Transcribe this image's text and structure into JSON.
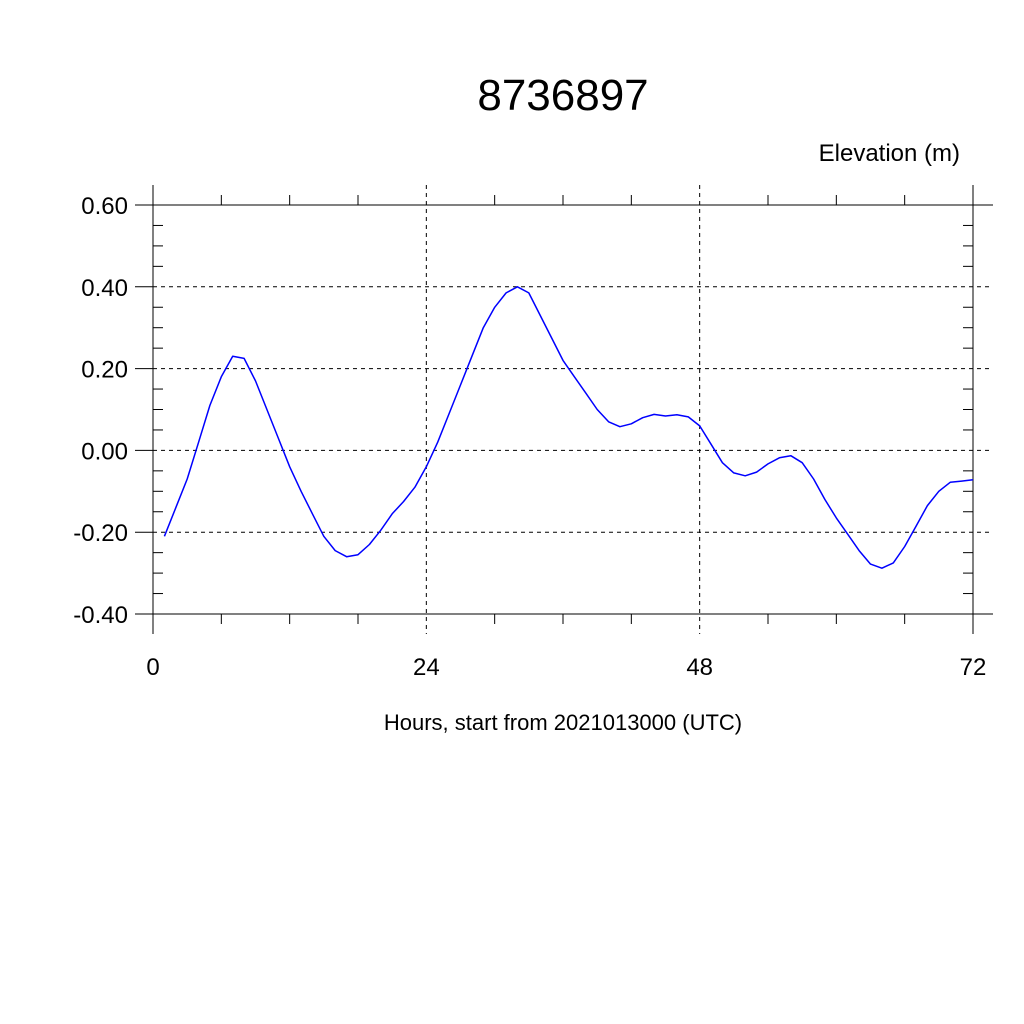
{
  "chart_data": {
    "type": "line",
    "title": "8736897",
    "ylabel": "Elevation (m)",
    "xlabel": "Hours, start from 2021013000 (UTC)",
    "xlim": [
      0,
      72
    ],
    "ylim": [
      -0.4,
      0.6
    ],
    "x_ticks": [
      0,
      24,
      48,
      72
    ],
    "x_tick_labels": [
      "0",
      "24",
      "48",
      "72"
    ],
    "y_ticks": [
      0.6,
      0.4,
      0.2,
      0.0,
      -0.2,
      -0.4
    ],
    "y_tick_labels": [
      "0.60",
      "0.40",
      "0.20",
      "0.00",
      "-0.20",
      "-0.40"
    ],
    "grid": true,
    "line_color": "#0000ff",
    "series": [
      {
        "x": [
          1,
          2,
          3,
          4,
          5,
          6,
          7,
          8,
          9,
          10,
          11,
          12,
          13,
          14,
          15,
          16,
          17,
          18,
          19,
          20,
          21,
          22,
          23,
          24,
          25,
          26,
          27,
          28,
          29,
          30,
          31,
          32,
          33,
          34,
          35,
          36,
          37,
          38,
          39,
          40,
          41,
          42,
          43,
          44,
          45,
          46,
          47,
          48,
          49,
          50,
          51,
          52,
          53,
          54,
          55,
          56,
          57,
          58,
          59,
          60,
          61,
          62,
          63,
          64,
          65,
          66,
          67,
          68,
          69,
          70,
          71,
          72
        ],
        "y": [
          -0.21,
          -0.14,
          -0.07,
          0.02,
          0.11,
          0.18,
          0.23,
          0.225,
          0.17,
          0.1,
          0.03,
          -0.04,
          -0.1,
          -0.155,
          -0.21,
          -0.245,
          -0.26,
          -0.255,
          -0.23,
          -0.195,
          -0.155,
          -0.125,
          -0.09,
          -0.04,
          0.02,
          0.09,
          0.16,
          0.23,
          0.3,
          0.35,
          0.385,
          0.4,
          0.385,
          0.33,
          0.275,
          0.22,
          0.18,
          0.14,
          0.1,
          0.07,
          0.058,
          0.065,
          0.08,
          0.088,
          0.084,
          0.087,
          0.082,
          0.06,
          0.015,
          -0.03,
          -0.055,
          -0.062,
          -0.053,
          -0.033,
          -0.018,
          -0.013,
          -0.03,
          -0.07,
          -0.12,
          -0.165,
          -0.205,
          -0.245,
          -0.278,
          -0.288,
          -0.275,
          -0.235,
          -0.185,
          -0.135,
          -0.1,
          -0.078,
          -0.075,
          -0.072
        ]
      }
    ]
  }
}
